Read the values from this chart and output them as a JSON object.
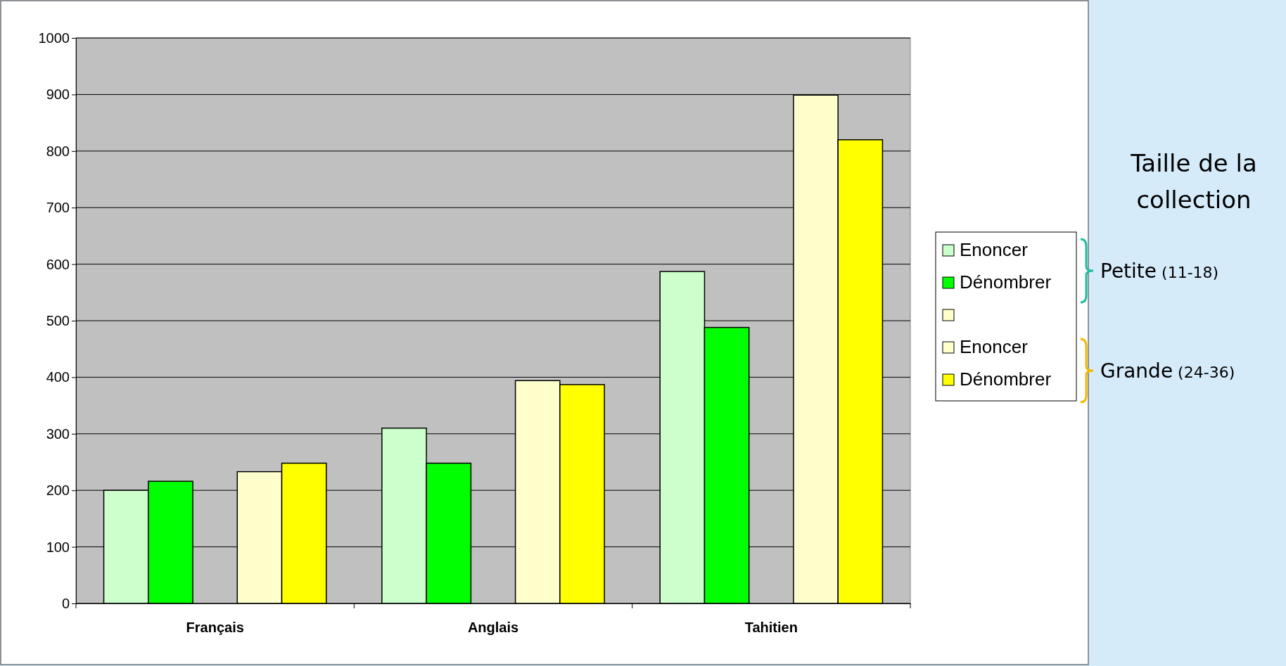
{
  "chart_data": {
    "type": "bar",
    "categories": [
      "Français",
      "Anglais",
      "Tahitien"
    ],
    "series": [
      {
        "name": "Enoncer",
        "color": "#ccffcc",
        "values": [
          200,
          310,
          587
        ]
      },
      {
        "name": "Dénombrer",
        "color": "#00ff00",
        "values": [
          216,
          248,
          488
        ]
      },
      {
        "color": "#ffffcc",
        "values": [
          null,
          null,
          null
        ]
      },
      {
        "name": "Enoncer",
        "color": "#ffffcc",
        "values": [
          233,
          394,
          899
        ]
      },
      {
        "name": "Dénombrer",
        "color": "#ffff00",
        "values": [
          248,
          387,
          820
        ]
      }
    ],
    "ylim": [
      0,
      1000
    ],
    "yticks": [
      0,
      100,
      200,
      300,
      400,
      500,
      600,
      700,
      800,
      900,
      1000
    ],
    "grid": "y",
    "legend": "right",
    "annotations": [
      "Taille de la collection",
      "Petite (11-18)",
      "Grande (24-36)"
    ]
  }
}
